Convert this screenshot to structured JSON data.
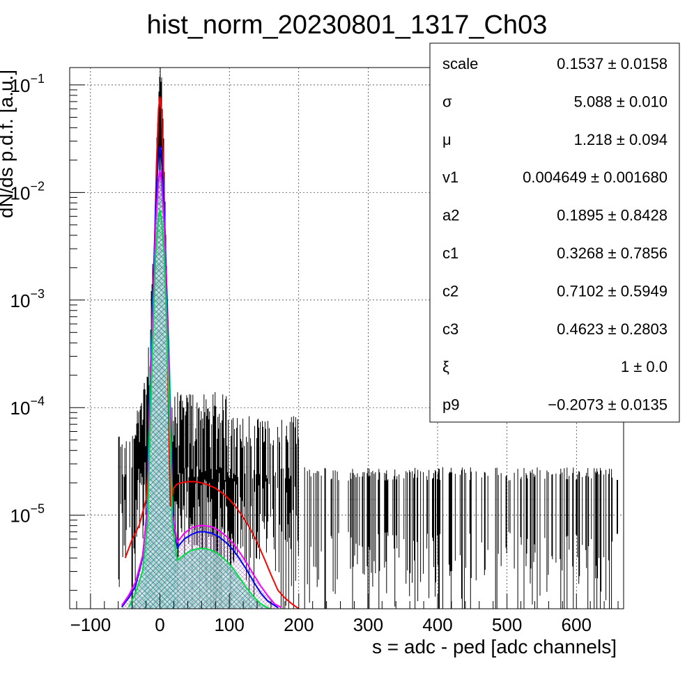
{
  "chart_data": {
    "type": "histogram",
    "title": "hist_norm_20230801_1317_Ch03",
    "xlabel": "s = adc - ped [adc channels]",
    "ylabel": "dN/ds p.d.f. [a.u.]",
    "xlim": [
      -130,
      668
    ],
    "ylim": [
      1.35e-06,
      0.145
    ],
    "yscale": "log",
    "grid": true,
    "x_ticks": [
      -100,
      0,
      100,
      200,
      300,
      400,
      500,
      600
    ],
    "y_ticks": [
      {
        "value": 1e-05,
        "base": "10",
        "exp": "−5"
      },
      {
        "value": 0.0001,
        "base": "10",
        "exp": "−4"
      },
      {
        "value": 0.001,
        "base": "10",
        "exp": "−3"
      },
      {
        "value": 0.01,
        "base": "10",
        "exp": "−2"
      },
      {
        "value": 0.1,
        "base": "10",
        "exp": "−1"
      }
    ],
    "series": [
      {
        "color": "#ff0000",
        "role": "total-fit",
        "x": [
          -50,
          -40,
          -30,
          -20,
          -15,
          -10,
          -5,
          -2,
          0,
          2,
          5,
          10,
          15,
          20,
          25,
          30,
          40,
          50,
          60,
          70,
          80,
          90,
          100,
          110,
          120,
          130,
          140,
          150,
          160,
          170,
          180,
          190,
          200
        ],
        "y": [
          4e-06,
          6e-06,
          8e-06,
          1.4e-05,
          4e-05,
          0.0006,
          0.018,
          0.06,
          0.078,
          0.06,
          0.018,
          0.0006,
          1.2e-05,
          1.8e-05,
          1.95e-05,
          2e-05,
          2.05e-05,
          2.05e-05,
          2e-05,
          1.9e-05,
          1.78e-05,
          1.6e-05,
          1.4e-05,
          1.18e-05,
          9.5e-06,
          7.5e-06,
          5.6e-06,
          4e-06,
          2.8e-06,
          2e-06,
          1.7e-06,
          1.5e-06,
          1.35e-06
        ]
      },
      {
        "color": "#0000ff",
        "role": "component",
        "x": [
          -55,
          -45,
          -35,
          -25,
          -18,
          -12,
          -6,
          -2,
          0,
          2,
          6,
          12,
          18,
          25,
          35,
          45,
          55,
          65,
          75,
          85,
          95,
          105,
          115,
          125,
          135,
          145,
          155,
          165,
          170
        ],
        "y": [
          1.4e-06,
          1.7e-06,
          2.2e-06,
          4e-06,
          1.2e-05,
          0.0004,
          0.008,
          0.022,
          0.027,
          0.022,
          0.008,
          0.0004,
          1.1e-05,
          5e-06,
          6e-06,
          6.6e-06,
          7e-06,
          7e-06,
          6.8e-06,
          6.3e-06,
          5.6e-06,
          4.8e-06,
          3.9e-06,
          3.1e-06,
          2.4e-06,
          1.9e-06,
          1.6e-06,
          1.45e-06,
          1.38e-06
        ]
      },
      {
        "color": "#ff00ff",
        "role": "component",
        "x": [
          -55,
          -45,
          -35,
          -25,
          -18,
          -12,
          -6,
          -2,
          0,
          2,
          6,
          12,
          18,
          25,
          35,
          45,
          55,
          65,
          75,
          85,
          95,
          105,
          115,
          125,
          135,
          145,
          155,
          165,
          175
        ],
        "y": [
          1.45e-06,
          1.8e-06,
          2.4e-06,
          4.2e-06,
          1.1e-05,
          0.0003,
          0.0055,
          0.013,
          0.016,
          0.013,
          0.0055,
          0.0003,
          1e-05,
          5.6e-06,
          6.8e-06,
          7.6e-06,
          8e-06,
          8e-06,
          7.8e-06,
          7.2e-06,
          6.4e-06,
          5.5e-06,
          4.5e-06,
          3.6e-06,
          2.8e-06,
          2.2e-06,
          1.8e-06,
          1.5e-06,
          1.38e-06
        ]
      },
      {
        "color": "#00dd44",
        "role": "component",
        "x": [
          -45,
          -35,
          -25,
          -18,
          -12,
          -6,
          -2,
          0,
          2,
          6,
          12,
          18,
          25,
          35,
          45,
          55,
          65,
          75,
          85,
          95,
          105,
          115,
          125,
          135,
          145,
          155,
          158
        ],
        "y": [
          1.4e-06,
          1.9e-06,
          3e-06,
          8e-06,
          0.0002,
          0.0028,
          0.0058,
          0.0068,
          0.0058,
          0.0028,
          0.0002,
          8e-06,
          3.8e-06,
          4.3e-06,
          4.7e-06,
          4.9e-06,
          4.9e-06,
          4.7e-06,
          4.3e-06,
          3.8e-06,
          3.2e-06,
          2.6e-06,
          2.1e-06,
          1.75e-06,
          1.5e-06,
          1.38e-06,
          1.35e-06
        ]
      },
      {
        "color": "#00cccc",
        "role": "pedestal-fill",
        "x": [
          -22,
          -18,
          -14,
          -10,
          -6,
          -3,
          0,
          3,
          6,
          10,
          14,
          18,
          22
        ],
        "y": [
          1.35e-06,
          1.5e-05,
          0.0002,
          0.0012,
          0.005,
          0.012,
          0.016,
          0.012,
          0.005,
          0.0012,
          0.0002,
          1.5e-05,
          1.35e-06
        ]
      }
    ],
    "stats": [
      {
        "label": "scale",
        "value": "0.1537",
        "error": "0.0158"
      },
      {
        "label": "σ",
        "value": "5.088",
        "error": "0.010"
      },
      {
        "label": "μ",
        "value": "1.218",
        "error": "0.094"
      },
      {
        "label": "v1",
        "value": "0.004649",
        "error": "0.001680"
      },
      {
        "label": "a2",
        "value": "0.1895",
        "error": "0.8428"
      },
      {
        "label": "c1",
        "value": "0.3268",
        "error": "0.7856"
      },
      {
        "label": "c2",
        "value": "0.7102",
        "error": "0.5949"
      },
      {
        "label": "c3",
        "value": "0.4623",
        "error": "0.2803"
      },
      {
        "label": "ξ",
        "value": "1",
        "error": "0.0"
      },
      {
        "label": "p9",
        "value": "−0.2073",
        "error": "0.0135"
      }
    ],
    "pm": "±"
  }
}
